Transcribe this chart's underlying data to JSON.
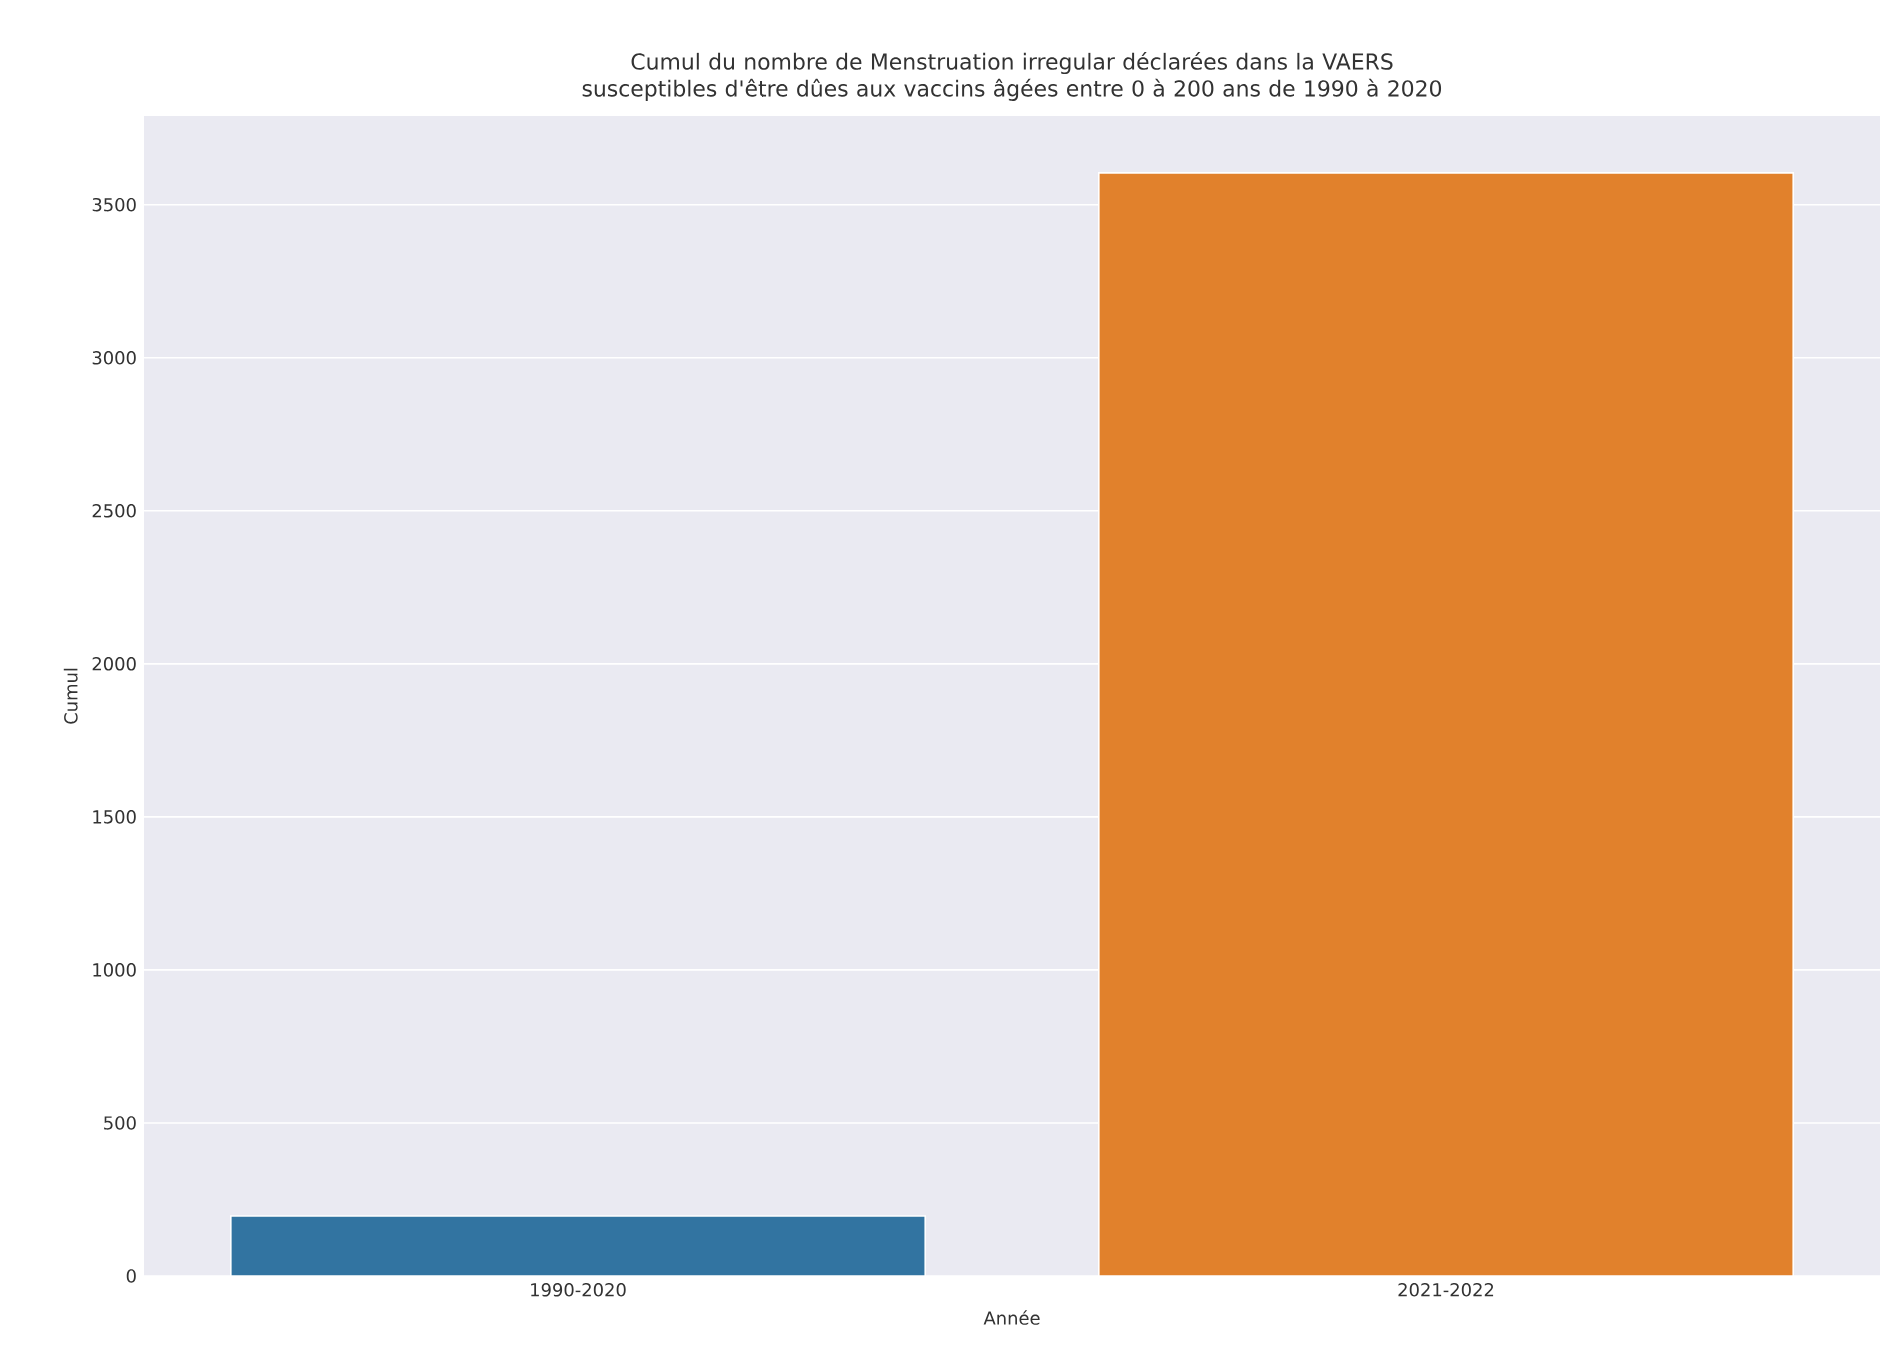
{
  "chart_data": {
    "type": "bar",
    "title": "Cumul du nombre de Menstruation irregular déclarées dans la VAERS susceptibles d'être dûes aux vaccins âgées entre 0 à 200 ans de 1990 à 2020",
    "xlabel": "Année",
    "ylabel": "Cumul",
    "categories": [
      "1990-2020",
      "2021-2022"
    ],
    "values": [
      196,
      3604
    ],
    "colors": [
      "#3274a1",
      "#e1812c"
    ],
    "ylim": [
      0,
      3790
    ],
    "yticks": [
      0,
      500,
      1000,
      1500,
      2000,
      2500,
      3000,
      3500
    ],
    "grid": "y"
  }
}
